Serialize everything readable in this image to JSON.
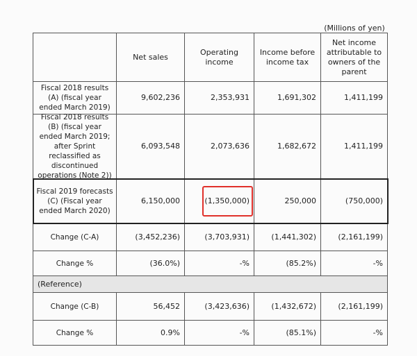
{
  "unit": "(Millions of yen)",
  "table": {
    "header": [
      "",
      "Net sales",
      "Operating income",
      "Income before income tax",
      "Net income attributable to owners of the parent"
    ],
    "rows": [
      [
        "Fiscal 2018 results (A) (fiscal year ended March 2019)",
        "9,602,236",
        "2,353,931",
        "1,691,302",
        "1,411,199"
      ],
      [
        "Fiscal 2018 results (B) (fiscal year ended March 2019; after Sprint reclassified as discontinued operations (Note 2))",
        "6,093,548",
        "2,073,636",
        "1,682,672",
        "1,411,199"
      ],
      [
        "Fiscal 2019 forecasts (C) (Fiscal year ended March 2020)",
        "6,150,000",
        "(1,350,000)",
        "250,000",
        "(750,000)"
      ],
      [
        "Change (C-A)",
        "(3,452,236)",
        "(3,703,931)",
        "(1,441,302)",
        "(2,161,199)"
      ],
      [
        "Change %",
        "(36.0%)",
        "-%",
        "(85.2%)",
        "-%"
      ],
      [
        "(Reference)"
      ],
      [
        "Change (C-B)",
        "56,452",
        "(3,423,636)",
        "(1,432,672)",
        "(2,161,199)"
      ],
      [
        "Change %",
        "0.9%",
        "-%",
        "(85.1%)",
        "-%"
      ]
    ]
  }
}
